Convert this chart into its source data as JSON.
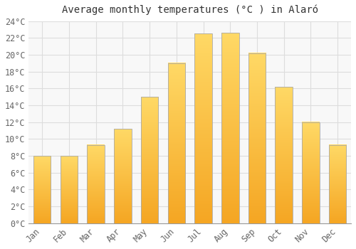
{
  "title": "Average monthly temperatures (°C ) in Alaró",
  "months": [
    "Jan",
    "Feb",
    "Mar",
    "Apr",
    "May",
    "Jun",
    "Jul",
    "Aug",
    "Sep",
    "Oct",
    "Nov",
    "Dec"
  ],
  "temperatures": [
    8.0,
    8.0,
    9.3,
    11.2,
    15.0,
    19.0,
    22.5,
    22.6,
    20.2,
    16.2,
    12.0,
    9.3
  ],
  "bar_color_bottom": "#F5A623",
  "bar_color_top": "#FFD966",
  "bar_edge_color": "#AAAAAA",
  "background_color": "#FFFFFF",
  "plot_bg_color": "#F8F8F8",
  "grid_color": "#DDDDDD",
  "ylim": [
    0,
    24
  ],
  "ytick_step": 2,
  "title_fontsize": 10,
  "tick_fontsize": 8.5,
  "bar_width": 0.65
}
